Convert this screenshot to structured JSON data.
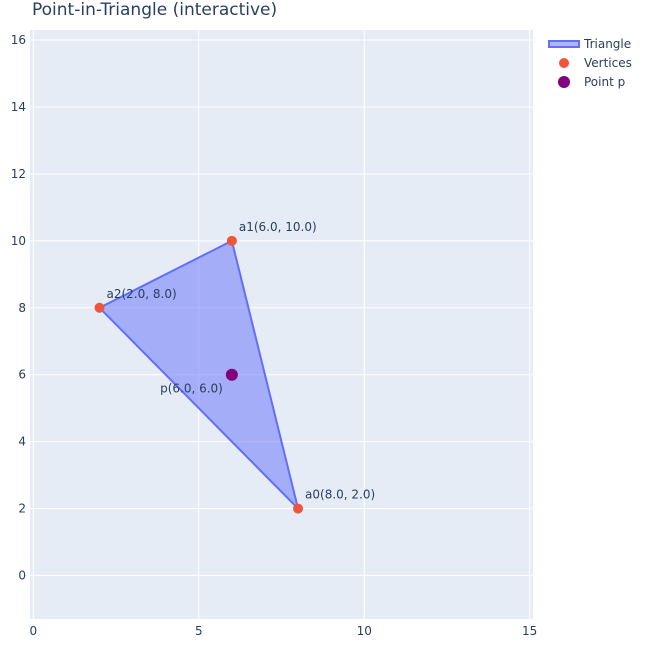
{
  "chart_data": {
    "type": "scatter",
    "title": "Point-in-Triangle (interactive)",
    "xlabel": "",
    "ylabel": "",
    "xlim": [
      -0.1,
      15.1
    ],
    "ylim": [
      -1.3,
      16.3
    ],
    "xticks": [
      0,
      5,
      10,
      15
    ],
    "yticks": [
      0,
      2,
      4,
      6,
      8,
      10,
      12,
      14,
      16
    ],
    "grid": true,
    "legend": "top-right",
    "background": "#e5ecf6",
    "series": [
      {
        "name": "Triangle",
        "kind": "filled-polygon",
        "x": [
          8,
          6,
          2,
          8
        ],
        "y": [
          2,
          10,
          8,
          2
        ],
        "line_color": "#636efa",
        "fill_color": "#636efa"
      },
      {
        "name": "Vertices",
        "kind": "markers",
        "color": "#ef553b",
        "points": [
          {
            "label": "a0(8.0, 2.0)",
            "x": 8,
            "y": 2
          },
          {
            "label": "a1(6.0, 10.0)",
            "x": 6,
            "y": 10
          },
          {
            "label": "a2(2.0, 8.0)",
            "x": 2,
            "y": 8
          }
        ]
      },
      {
        "name": "Point p",
        "kind": "markers",
        "color": "#800080",
        "points": [
          {
            "label": "p(6.0, 6.0)",
            "x": 6,
            "y": 6
          }
        ]
      }
    ]
  }
}
